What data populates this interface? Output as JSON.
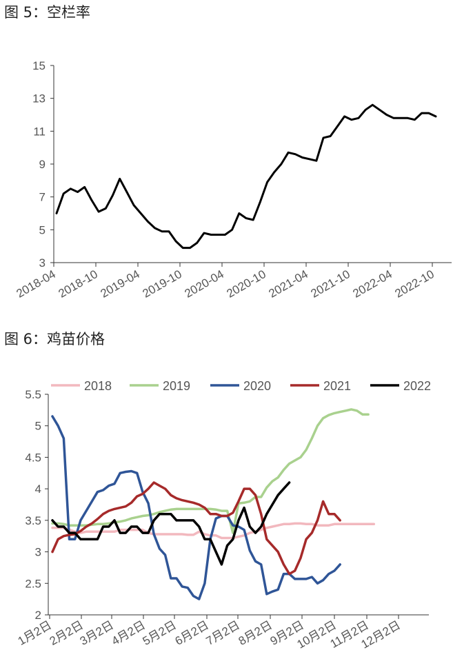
{
  "figures": [
    {
      "title": "图 5：空栏率"
    },
    {
      "title": "图 6：鸡苗价格"
    }
  ],
  "chart_data": [
    {
      "type": "line",
      "title": "图 5：空栏率",
      "ylim": [
        3,
        15
      ],
      "yticks": [
        3,
        5,
        7,
        9,
        11,
        13,
        15
      ],
      "xticks": [
        "2018-04",
        "2018-10",
        "2019-04",
        "2019-10",
        "2020-04",
        "2020-10",
        "2021-04",
        "2021-10",
        "2022-04",
        "2022-10"
      ],
      "legend": "none",
      "grid": false,
      "series": [
        {
          "color": "#000000",
          "values": [
            6.0,
            7.2,
            7.5,
            7.3,
            7.6,
            6.8,
            6.1,
            6.3,
            7.1,
            8.1,
            7.3,
            6.5,
            6.0,
            5.5,
            5.1,
            4.9,
            4.9,
            4.3,
            3.9,
            3.9,
            4.2,
            4.8,
            4.7,
            4.7,
            4.7,
            5.0,
            6.0,
            5.7,
            5.6,
            6.7,
            7.9,
            8.5,
            9.0,
            9.7,
            9.6,
            9.4,
            9.3,
            9.2,
            10.6,
            10.7,
            11.3,
            11.9,
            11.7,
            11.8,
            12.3,
            12.6,
            12.3,
            12.0,
            11.8,
            11.8,
            11.8,
            11.7,
            12.1,
            12.1,
            11.9
          ]
        }
      ]
    },
    {
      "type": "line",
      "title": "图 6：鸡苗价格",
      "ylim": [
        2,
        5.5
      ],
      "yticks": [
        "2",
        "2.5",
        "3",
        "3.5",
        "4",
        "4.5",
        "5",
        "5.5"
      ],
      "xticks": [
        "1月2日",
        "2月2日",
        "3月2日",
        "4月2日",
        "5月2日",
        "6月2日",
        "7月2日",
        "8月2日",
        "9月2日",
        "10月2日",
        "11月2日",
        "12月2日"
      ],
      "legend": "top",
      "grid": false,
      "series": [
        {
          "name": "2018",
          "color": "#f2b8be",
          "values": [
            3.38,
            3.38,
            3.38,
            3.35,
            3.32,
            3.3,
            3.32,
            3.32,
            3.32,
            3.32,
            3.32,
            3.32,
            3.35,
            3.35,
            3.35,
            3.35,
            3.35,
            3.3,
            3.28,
            3.28,
            3.28,
            3.28,
            3.28,
            3.28,
            3.27,
            3.27,
            3.32,
            3.28,
            3.26,
            3.26,
            3.22,
            3.22,
            3.22,
            3.24,
            3.26,
            3.3,
            3.32,
            3.35,
            3.38,
            3.4,
            3.42,
            3.44,
            3.44,
            3.45,
            3.45,
            3.44,
            3.44,
            3.42,
            3.42,
            3.42,
            3.44,
            3.44,
            3.44,
            3.44,
            3.44,
            3.44,
            3.44,
            3.44
          ]
        },
        {
          "name": "2019",
          "color": "#a9d18e",
          "values": [
            3.45,
            3.45,
            3.44,
            3.42,
            3.42,
            3.42,
            3.42,
            3.43,
            3.44,
            3.44,
            3.45,
            3.47,
            3.48,
            3.5,
            3.53,
            3.55,
            3.57,
            3.58,
            3.6,
            3.63,
            3.65,
            3.67,
            3.68,
            3.68,
            3.68,
            3.68,
            3.68,
            3.68,
            3.68,
            3.67,
            3.65,
            3.65,
            3.3,
            3.77,
            3.78,
            3.8,
            3.87,
            3.87,
            4.02,
            4.12,
            4.18,
            4.3,
            4.4,
            4.45,
            4.5,
            4.62,
            4.8,
            5.0,
            5.12,
            5.17,
            5.2,
            5.22,
            5.24,
            5.26,
            5.24,
            5.18,
            5.18
          ]
        },
        {
          "name": "2020",
          "color": "#2f5597",
          "values": [
            5.15,
            5.0,
            4.8,
            3.2,
            3.2,
            3.5,
            3.65,
            3.8,
            3.95,
            3.98,
            4.05,
            4.08,
            4.25,
            4.27,
            4.28,
            4.25,
            3.95,
            3.77,
            3.28,
            3.05,
            2.95,
            2.58,
            2.58,
            2.45,
            2.43,
            2.3,
            2.25,
            2.5,
            3.2,
            3.53,
            3.57,
            3.57,
            3.42,
            3.4,
            3.35,
            3.02,
            2.85,
            2.8,
            2.33,
            2.37,
            2.4,
            2.65,
            2.65,
            2.57,
            2.57,
            2.57,
            2.6,
            2.5,
            2.55,
            2.65,
            2.7,
            2.8
          ]
        },
        {
          "name": "2021",
          "color": "#a62a2a",
          "values": [
            3.0,
            3.2,
            3.25,
            3.27,
            3.28,
            3.33,
            3.4,
            3.45,
            3.52,
            3.6,
            3.65,
            3.68,
            3.7,
            3.72,
            3.78,
            3.88,
            3.92,
            4.0,
            4.1,
            4.05,
            4.0,
            3.9,
            3.85,
            3.82,
            3.8,
            3.78,
            3.75,
            3.7,
            3.6,
            3.6,
            3.57,
            3.57,
            3.62,
            3.8,
            4.0,
            4.0,
            3.9,
            3.6,
            3.2,
            3.1,
            3.0,
            2.8,
            2.65,
            2.7,
            2.9,
            3.2,
            3.3,
            3.5,
            3.8,
            3.6,
            3.6,
            3.5
          ]
        },
        {
          "name": "2022",
          "color": "#000000",
          "values": [
            3.5,
            3.4,
            3.4,
            3.3,
            3.3,
            3.2,
            3.2,
            3.2,
            3.2,
            3.4,
            3.4,
            3.5,
            3.3,
            3.3,
            3.4,
            3.4,
            3.3,
            3.3,
            3.5,
            3.6,
            3.6,
            3.6,
            3.5,
            3.5,
            3.5,
            3.5,
            3.4,
            3.2,
            3.2,
            3.0,
            2.8,
            3.1,
            3.2,
            3.5,
            3.7,
            3.4,
            3.3,
            3.4,
            3.6,
            3.75,
            3.9,
            4.0,
            4.1
          ]
        }
      ]
    }
  ]
}
